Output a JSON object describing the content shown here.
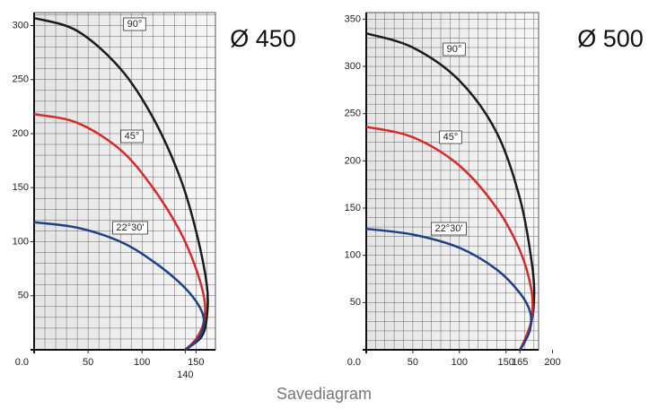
{
  "chart_data": [
    {
      "type": "line",
      "title": "Ø 450",
      "xlim": [
        0,
        168
      ],
      "ylim": [
        0,
        312
      ],
      "xticks": [
        {
          "value": 0,
          "label": "0.0"
        },
        50,
        100,
        140,
        150
      ],
      "yticks": [
        50,
        100,
        150,
        200,
        250,
        300
      ],
      "grid": true,
      "minor_grid_step": 10,
      "series": [
        {
          "name": "90°",
          "color": "#1a1a1a",
          "x": [
            0,
            40,
            80,
            110,
            135,
            150,
            160,
            160,
            155,
            140
          ],
          "values": [
            307,
            295,
            260,
            215,
            160,
            110,
            60,
            30,
            12,
            0
          ]
        },
        {
          "name": "45°",
          "color": "#d42a2a",
          "x": [
            0,
            40,
            80,
            110,
            135,
            150,
            158,
            157,
            150,
            140
          ],
          "values": [
            218,
            210,
            185,
            150,
            110,
            75,
            45,
            25,
            10,
            0
          ]
        },
        {
          "name": "22°30'",
          "color": "#1f3f86",
          "x": [
            0,
            40,
            80,
            110,
            135,
            150,
            157,
            155,
            148,
            140
          ],
          "values": [
            118,
            113,
            100,
            82,
            62,
            45,
            30,
            15,
            6,
            0
          ]
        }
      ]
    },
    {
      "type": "line",
      "title": "Ø 500",
      "xlim": [
        0,
        185
      ],
      "ylim": [
        0,
        357
      ],
      "xticks": [
        {
          "value": 0,
          "label": "0.0"
        },
        50,
        100,
        150,
        165,
        200
      ],
      "yticks": [
        50,
        100,
        150,
        200,
        250,
        300,
        350
      ],
      "grid": true,
      "minor_grid_step": 10,
      "series": [
        {
          "name": "90°",
          "color": "#1a1a1a",
          "x": [
            0,
            50,
            100,
            140,
            165,
            178,
            180,
            175,
            168,
            165
          ],
          "values": [
            335,
            320,
            285,
            230,
            160,
            90,
            50,
            20,
            5,
            0
          ]
        },
        {
          "name": "45°",
          "color": "#d42a2a",
          "x": [
            0,
            50,
            100,
            140,
            165,
            177,
            178,
            172,
            165
          ],
          "values": [
            236,
            225,
            195,
            150,
            105,
            65,
            35,
            15,
            0
          ]
        },
        {
          "name": "22°30'",
          "color": "#1f3f86",
          "x": [
            0,
            50,
            100,
            140,
            165,
            176,
            176,
            170,
            165
          ],
          "values": [
            128,
            122,
            108,
            85,
            60,
            40,
            22,
            8,
            0
          ]
        }
      ]
    }
  ],
  "caption": "Savediagram"
}
